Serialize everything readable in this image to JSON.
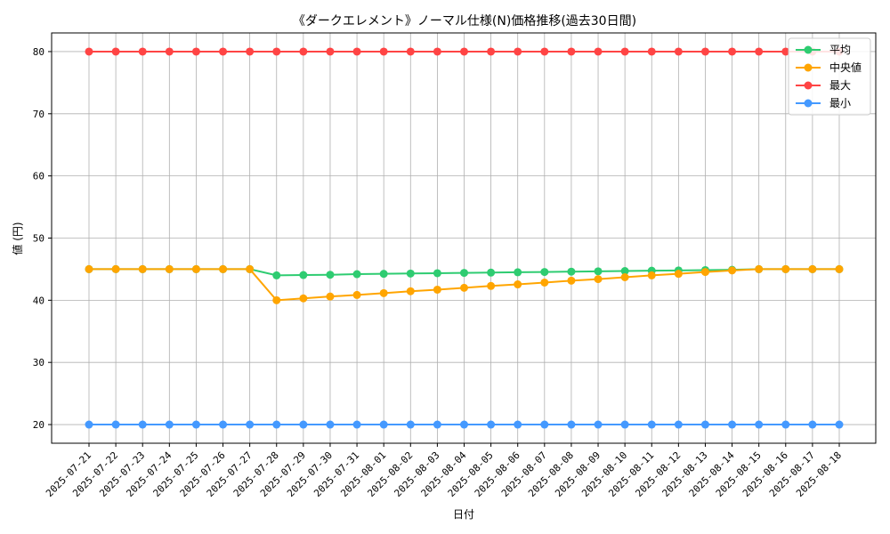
{
  "chart_data": {
    "type": "line",
    "title": "《ダークエレメント》ノーマル仕様(N)価格推移(過去30日間)",
    "xlabel": "日付",
    "ylabel": "値 (円)",
    "ylim": [
      17,
      83
    ],
    "yticks": [
      20,
      30,
      40,
      50,
      60,
      70,
      80
    ],
    "grid": true,
    "legend_position": "top-right",
    "categories": [
      "2025-07-21",
      "2025-07-22",
      "2025-07-23",
      "2025-07-24",
      "2025-07-25",
      "2025-07-26",
      "2025-07-27",
      "2025-07-28",
      "2025-07-29",
      "2025-07-30",
      "2025-07-31",
      "2025-08-01",
      "2025-08-02",
      "2025-08-03",
      "2025-08-04",
      "2025-08-05",
      "2025-08-06",
      "2025-08-07",
      "2025-08-08",
      "2025-08-09",
      "2025-08-10",
      "2025-08-11",
      "2025-08-12",
      "2025-08-13",
      "2025-08-14",
      "2025-08-15",
      "2025-08-16",
      "2025-08-17",
      "2025-08-18"
    ],
    "series": [
      {
        "name": "平均",
        "color": "#2ecc71",
        "values": [
          45,
          45,
          45,
          45,
          45,
          45,
          45,
          44.0,
          44.05,
          44.1,
          44.2,
          44.25,
          44.3,
          44.35,
          44.4,
          44.45,
          44.5,
          44.55,
          44.6,
          44.65,
          44.7,
          44.75,
          44.8,
          44.85,
          44.9,
          45,
          45,
          45,
          45
        ]
      },
      {
        "name": "中央値",
        "color": "#ffa500",
        "values": [
          45,
          45,
          45,
          45,
          45,
          45,
          45,
          40.0,
          40.3,
          40.6,
          40.85,
          41.15,
          41.45,
          41.7,
          42.0,
          42.3,
          42.55,
          42.85,
          43.15,
          43.4,
          43.7,
          44.0,
          44.25,
          44.55,
          44.8,
          45,
          45,
          45,
          45
        ]
      },
      {
        "name": "最大",
        "color": "#ff4444",
        "values": [
          80,
          80,
          80,
          80,
          80,
          80,
          80,
          80,
          80,
          80,
          80,
          80,
          80,
          80,
          80,
          80,
          80,
          80,
          80,
          80,
          80,
          80,
          80,
          80,
          80,
          80,
          80,
          80,
          80
        ]
      },
      {
        "name": "最小",
        "color": "#4499ff",
        "values": [
          20,
          20,
          20,
          20,
          20,
          20,
          20,
          20,
          20,
          20,
          20,
          20,
          20,
          20,
          20,
          20,
          20,
          20,
          20,
          20,
          20,
          20,
          20,
          20,
          20,
          20,
          20,
          20,
          20
        ]
      }
    ]
  }
}
